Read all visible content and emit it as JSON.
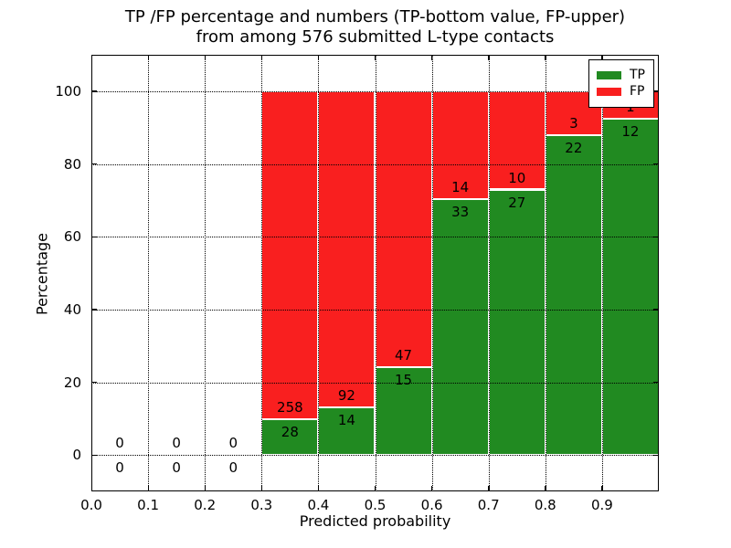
{
  "chart_data": {
    "type": "bar",
    "stacked": true,
    "title_line1": "TP /FP percentage and numbers (TP-bottom value, FP-upper)",
    "title_line2": "from among 576 submitted L-type contacts",
    "xlabel": "Predicted probability",
    "ylabel": "Percentage",
    "total_submitted": 576,
    "xlim": [
      0.0,
      1.0
    ],
    "ylim": [
      -10,
      110
    ],
    "xticks": [
      "0.0",
      "0.1",
      "0.2",
      "0.3",
      "0.4",
      "0.5",
      "0.6",
      "0.7",
      "0.8",
      "0.9"
    ],
    "yticks": [
      "0",
      "20",
      "40",
      "60",
      "80",
      "100"
    ],
    "grid": true,
    "grid_style": "dotted",
    "colors": {
      "tp": "#218a21",
      "fp": "#f91f1f",
      "bar_edge": "#ffffff",
      "text": "#000000"
    },
    "legend": {
      "position": "upper-right",
      "entries": [
        {
          "label": "TP",
          "color": "#218a21"
        },
        {
          "label": "FP",
          "color": "#f91f1f"
        }
      ]
    },
    "bins": [
      {
        "x0": 0.0,
        "x1": 0.1,
        "tp": 0,
        "fp": 0,
        "tp_pct": 0,
        "total_pct": 0
      },
      {
        "x0": 0.1,
        "x1": 0.2,
        "tp": 0,
        "fp": 0,
        "tp_pct": 0,
        "total_pct": 0
      },
      {
        "x0": 0.2,
        "x1": 0.3,
        "tp": 0,
        "fp": 0,
        "tp_pct": 0,
        "total_pct": 0
      },
      {
        "x0": 0.3,
        "x1": 0.4,
        "tp": 28,
        "fp": 258,
        "tp_pct": 9.79,
        "total_pct": 100
      },
      {
        "x0": 0.4,
        "x1": 0.5,
        "tp": 14,
        "fp": 92,
        "tp_pct": 13.21,
        "total_pct": 100
      },
      {
        "x0": 0.5,
        "x1": 0.6,
        "tp": 15,
        "fp": 47,
        "tp_pct": 24.19,
        "total_pct": 100
      },
      {
        "x0": 0.6,
        "x1": 0.7,
        "tp": 33,
        "fp": 14,
        "tp_pct": 70.21,
        "total_pct": 100
      },
      {
        "x0": 0.7,
        "x1": 0.8,
        "tp": 27,
        "fp": 10,
        "tp_pct": 72.97,
        "total_pct": 100
      },
      {
        "x0": 0.8,
        "x1": 0.9,
        "tp": 22,
        "fp": 3,
        "tp_pct": 88.0,
        "total_pct": 100
      },
      {
        "x0": 0.9,
        "x1": 1.0,
        "tp": 12,
        "fp": 1,
        "tp_pct": 92.31,
        "total_pct": 100
      }
    ]
  }
}
